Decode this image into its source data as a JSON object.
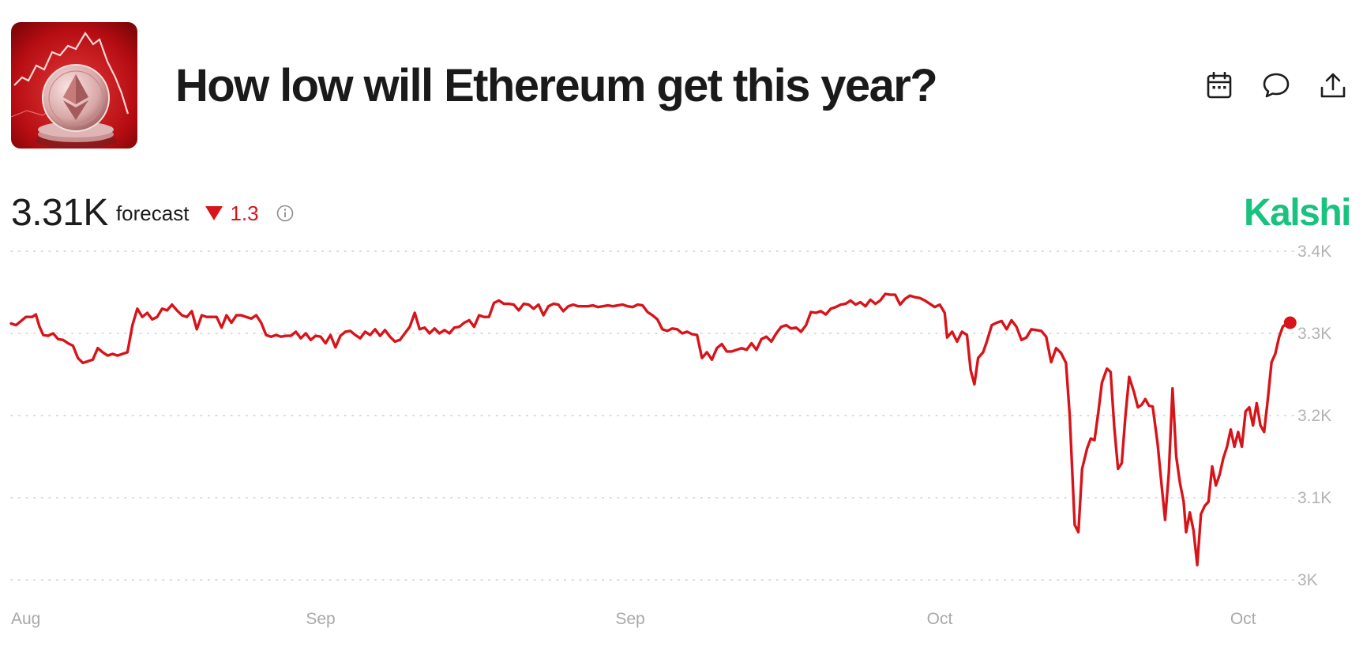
{
  "header": {
    "title": "How low will Ethereum get this year?",
    "thumbnail_icon": "ethereum-coin-image",
    "actions": [
      {
        "name": "calendar-button",
        "icon": "calendar-icon"
      },
      {
        "name": "comment-button",
        "icon": "comment-icon"
      },
      {
        "name": "share-button",
        "icon": "share-icon"
      }
    ]
  },
  "stats": {
    "value": "3.31K",
    "label": "forecast",
    "delta": "1.3",
    "delta_direction": "down",
    "delta_color": "#d7141a"
  },
  "brand": {
    "name": "Kalshi",
    "color": "#19c27e"
  },
  "chart_data": {
    "type": "line",
    "title": "",
    "xlabel": "",
    "ylabel": "",
    "ylim": [
      3000,
      3400
    ],
    "y_ticks": [
      {
        "value": 3400,
        "label": "3.4K"
      },
      {
        "value": 3300,
        "label": "3.3K"
      },
      {
        "value": 3200,
        "label": "3.2K"
      },
      {
        "value": 3100,
        "label": "3.1K"
      },
      {
        "value": 3000,
        "label": "3K"
      }
    ],
    "x_ticks": [
      {
        "x": 0,
        "label": "Aug"
      },
      {
        "x": 25,
        "label": "Sep"
      },
      {
        "x": 50,
        "label": "Sep"
      },
      {
        "x": 75,
        "label": "Oct"
      },
      {
        "x": 99.5,
        "label": "Oct"
      }
    ],
    "xlim": [
      0,
      100
    ],
    "grid": "horizontal-dotted",
    "line_color": "#d7141a",
    "series": [
      {
        "points": [
          [
            0,
            3312
          ],
          [
            0.4,
            3310
          ],
          [
            0.8,
            3315
          ],
          [
            1.2,
            3320
          ],
          [
            1.7,
            3320
          ],
          [
            2.0,
            3323
          ],
          [
            2.3,
            3308
          ],
          [
            2.6,
            3298
          ],
          [
            3.0,
            3297
          ],
          [
            3.4,
            3300
          ],
          [
            3.8,
            3293
          ],
          [
            4.2,
            3292
          ],
          [
            4.6,
            3288
          ],
          [
            5.0,
            3285
          ],
          [
            5.4,
            3270
          ],
          [
            5.8,
            3264
          ],
          [
            6.2,
            3266
          ],
          [
            6.6,
            3268
          ],
          [
            7.0,
            3282
          ],
          [
            7.4,
            3277
          ],
          [
            7.8,
            3273
          ],
          [
            8.2,
            3275
          ],
          [
            8.6,
            3273
          ],
          [
            9.0,
            3275
          ],
          [
            9.4,
            3277
          ],
          [
            9.8,
            3310
          ],
          [
            10.2,
            3330
          ],
          [
            10.6,
            3320
          ],
          [
            11.0,
            3325
          ],
          [
            11.4,
            3317
          ],
          [
            11.8,
            3320
          ],
          [
            12.2,
            3330
          ],
          [
            12.6,
            3328
          ],
          [
            13.0,
            3335
          ],
          [
            13.4,
            3328
          ],
          [
            13.8,
            3322
          ],
          [
            14.2,
            3320
          ],
          [
            14.6,
            3327
          ],
          [
            15.0,
            3305
          ],
          [
            15.4,
            3322
          ],
          [
            15.8,
            3320
          ],
          [
            16.2,
            3320
          ],
          [
            16.6,
            3320
          ],
          [
            17.0,
            3307
          ],
          [
            17.4,
            3322
          ],
          [
            17.8,
            3313
          ],
          [
            18.2,
            3322
          ],
          [
            18.6,
            3322
          ],
          [
            19.0,
            3320
          ],
          [
            19.4,
            3318
          ],
          [
            19.8,
            3322
          ],
          [
            20.2,
            3313
          ],
          [
            20.6,
            3298
          ],
          [
            21.0,
            3296
          ],
          [
            21.4,
            3298
          ],
          [
            21.8,
            3296
          ],
          [
            22.2,
            3297
          ],
          [
            22.6,
            3297
          ],
          [
            23.0,
            3302
          ],
          [
            23.4,
            3294
          ],
          [
            23.8,
            3300
          ],
          [
            24.2,
            3292
          ],
          [
            24.6,
            3297
          ],
          [
            25.0,
            3296
          ],
          [
            25.4,
            3288
          ],
          [
            25.8,
            3298
          ],
          [
            26.2,
            3283
          ],
          [
            26.6,
            3297
          ],
          [
            27.0,
            3302
          ],
          [
            27.4,
            3303
          ],
          [
            27.8,
            3298
          ],
          [
            28.2,
            3294
          ],
          [
            28.6,
            3302
          ],
          [
            29.0,
            3298
          ],
          [
            29.4,
            3305
          ],
          [
            29.8,
            3297
          ],
          [
            30.2,
            3304
          ],
          [
            30.6,
            3296
          ],
          [
            31.0,
            3290
          ],
          [
            31.4,
            3292
          ],
          [
            31.8,
            3300
          ],
          [
            32.2,
            3308
          ],
          [
            32.6,
            3325
          ],
          [
            33.0,
            3305
          ],
          [
            33.4,
            3307
          ],
          [
            33.8,
            3300
          ],
          [
            34.2,
            3306
          ],
          [
            34.6,
            3300
          ],
          [
            35.0,
            3304
          ],
          [
            35.4,
            3300
          ],
          [
            35.8,
            3307
          ],
          [
            36.2,
            3308
          ],
          [
            36.6,
            3313
          ],
          [
            37.0,
            3316
          ],
          [
            37.4,
            3308
          ],
          [
            37.8,
            3322
          ],
          [
            38.2,
            3320
          ],
          [
            38.6,
            3320
          ],
          [
            39.0,
            3337
          ],
          [
            39.4,
            3340
          ],
          [
            39.8,
            3336
          ],
          [
            40.2,
            3336
          ],
          [
            40.6,
            3335
          ],
          [
            41.0,
            3328
          ],
          [
            41.4,
            3336
          ],
          [
            41.8,
            3335
          ],
          [
            42.2,
            3330
          ],
          [
            42.6,
            3335
          ],
          [
            43.0,
            3322
          ],
          [
            43.4,
            3333
          ],
          [
            43.8,
            3336
          ],
          [
            44.2,
            3335
          ],
          [
            44.6,
            3327
          ],
          [
            45.0,
            3333
          ],
          [
            45.4,
            3335
          ],
          [
            45.8,
            3333
          ],
          [
            46.2,
            3333
          ],
          [
            46.6,
            3333
          ],
          [
            47.0,
            3334
          ],
          [
            47.4,
            3332
          ],
          [
            47.8,
            3333
          ],
          [
            48.2,
            3334
          ],
          [
            48.6,
            3333
          ],
          [
            49.0,
            3334
          ],
          [
            49.4,
            3335
          ],
          [
            49.8,
            3333
          ],
          [
            50.2,
            3332
          ],
          [
            50.6,
            3335
          ],
          [
            51.0,
            3334
          ],
          [
            51.4,
            3326
          ],
          [
            51.8,
            3322
          ],
          [
            52.2,
            3317
          ],
          [
            52.6,
            3305
          ],
          [
            53.0,
            3303
          ],
          [
            53.4,
            3306
          ],
          [
            53.8,
            3305
          ],
          [
            54.2,
            3300
          ],
          [
            54.6,
            3302
          ],
          [
            55.0,
            3299
          ],
          [
            55.4,
            3298
          ],
          [
            55.8,
            3270
          ],
          [
            56.2,
            3277
          ],
          [
            56.6,
            3268
          ],
          [
            57.0,
            3282
          ],
          [
            57.4,
            3287
          ],
          [
            57.8,
            3278
          ],
          [
            58.2,
            3278
          ],
          [
            58.6,
            3280
          ],
          [
            59.0,
            3282
          ],
          [
            59.4,
            3280
          ],
          [
            59.8,
            3288
          ],
          [
            60.2,
            3280
          ],
          [
            60.6,
            3293
          ],
          [
            61.0,
            3296
          ],
          [
            61.4,
            3290
          ],
          [
            61.8,
            3300
          ],
          [
            62.2,
            3308
          ],
          [
            62.6,
            3310
          ],
          [
            63.0,
            3306
          ],
          [
            63.4,
            3307
          ],
          [
            63.8,
            3302
          ],
          [
            64.2,
            3310
          ],
          [
            64.6,
            3326
          ],
          [
            65.0,
            3325
          ],
          [
            65.4,
            3327
          ],
          [
            65.8,
            3323
          ],
          [
            66.2,
            3330
          ],
          [
            66.6,
            3332
          ],
          [
            67.0,
            3335
          ],
          [
            67.4,
            3336
          ],
          [
            67.8,
            3340
          ],
          [
            68.2,
            3335
          ],
          [
            68.6,
            3338
          ],
          [
            69.0,
            3333
          ],
          [
            69.4,
            3341
          ],
          [
            69.8,
            3336
          ],
          [
            70.2,
            3340
          ],
          [
            70.6,
            3348
          ],
          [
            71.0,
            3347
          ],
          [
            71.4,
            3347
          ],
          [
            71.8,
            3335
          ],
          [
            72.2,
            3342
          ],
          [
            72.6,
            3346
          ],
          [
            73.0,
            3344
          ],
          [
            73.4,
            3343
          ],
          [
            73.8,
            3340
          ],
          [
            74.2,
            3336
          ],
          [
            74.6,
            3332
          ],
          [
            75.0,
            3335
          ],
          [
            75.4,
            3325
          ],
          [
            75.6,
            3295
          ],
          [
            76.0,
            3302
          ],
          [
            76.4,
            3290
          ],
          [
            76.8,
            3302
          ],
          [
            77.2,
            3298
          ],
          [
            77.5,
            3255
          ],
          [
            77.8,
            3238
          ],
          [
            78.1,
            3270
          ],
          [
            78.5,
            3277
          ],
          [
            78.8,
            3290
          ],
          [
            79.2,
            3310
          ],
          [
            79.6,
            3313
          ],
          [
            80.0,
            3315
          ],
          [
            80.4,
            3305
          ],
          [
            80.8,
            3316
          ],
          [
            81.2,
            3308
          ],
          [
            81.6,
            3292
          ],
          [
            82.0,
            3295
          ],
          [
            82.4,
            3305
          ],
          [
            82.8,
            3304
          ],
          [
            83.2,
            3303
          ],
          [
            83.6,
            3296
          ],
          [
            84.0,
            3265
          ],
          [
            84.4,
            3282
          ],
          [
            84.8,
            3276
          ],
          [
            85.2,
            3264
          ],
          [
            85.5,
            3200
          ],
          [
            85.9,
            3067
          ],
          [
            86.2,
            3058
          ],
          [
            86.5,
            3135
          ],
          [
            86.9,
            3160
          ],
          [
            87.2,
            3172
          ],
          [
            87.5,
            3170
          ],
          [
            87.8,
            3203
          ],
          [
            88.1,
            3240
          ],
          [
            88.5,
            3257
          ],
          [
            88.8,
            3253
          ],
          [
            89.1,
            3185
          ],
          [
            89.4,
            3135
          ],
          [
            89.7,
            3142
          ],
          [
            90.0,
            3200
          ],
          [
            90.3,
            3247
          ],
          [
            90.7,
            3228
          ],
          [
            91.0,
            3210
          ],
          [
            91.3,
            3213
          ],
          [
            91.6,
            3220
          ],
          [
            91.9,
            3212
          ],
          [
            92.2,
            3211
          ],
          [
            92.6,
            3165
          ],
          [
            92.9,
            3118
          ],
          [
            93.2,
            3073
          ],
          [
            93.5,
            3130
          ],
          [
            93.8,
            3233
          ],
          [
            94.1,
            3150
          ],
          [
            94.4,
            3118
          ],
          [
            94.7,
            3095
          ],
          [
            94.9,
            3058
          ],
          [
            95.2,
            3082
          ],
          [
            95.5,
            3060
          ],
          [
            95.8,
            3018
          ],
          [
            96.1,
            3080
          ],
          [
            96.4,
            3090
          ],
          [
            96.7,
            3095
          ],
          [
            97.0,
            3138
          ],
          [
            97.3,
            3115
          ],
          [
            97.6,
            3128
          ],
          [
            97.9,
            3148
          ],
          [
            98.2,
            3162
          ],
          [
            98.5,
            3183
          ],
          [
            98.8,
            3162
          ],
          [
            99.1,
            3180
          ],
          [
            99.4,
            3162
          ],
          [
            99.7,
            3205
          ],
          [
            100.0,
            3210
          ],
          [
            100.3,
            3188
          ],
          [
            100.6,
            3215
          ],
          [
            100.9,
            3188
          ],
          [
            101.2,
            3180
          ],
          [
            101.5,
            3220
          ],
          [
            101.8,
            3265
          ],
          [
            102.1,
            3275
          ],
          [
            102.4,
            3295
          ],
          [
            102.7,
            3308
          ],
          [
            103.0,
            3312
          ],
          [
            103.3,
            3313
          ]
        ]
      }
    ]
  }
}
